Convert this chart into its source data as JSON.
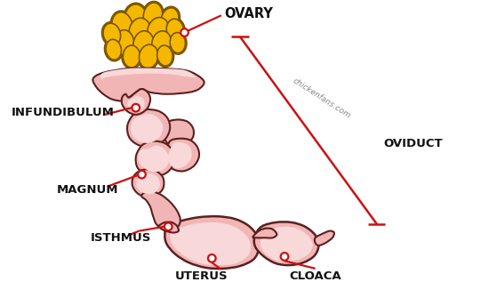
{
  "background_color": "#ffffff",
  "labels": {
    "ovary": "OVARY",
    "infundibulum": "INFUNDIBULUM",
    "magnum": "MAGNUM",
    "isthmus": "ISTHMUS",
    "uterus": "UTERUS",
    "cloaca": "CLOACA",
    "oviduct": "OVIDUCT",
    "watermark": "chickenfans.com"
  },
  "label_color": "#111111",
  "line_color": "#cc1111",
  "body_fill": "#f2b5b5",
  "body_fill_light": "#f8d8d8",
  "body_edge": "#5a2020",
  "ovary_fill": "#f5b800",
  "ovary_fill2": "#e8a500",
  "ovary_edge": "#7a5500",
  "label_fontsize": 9.5,
  "watermark_fontsize": 6.5,
  "label_fontweight": "bold"
}
